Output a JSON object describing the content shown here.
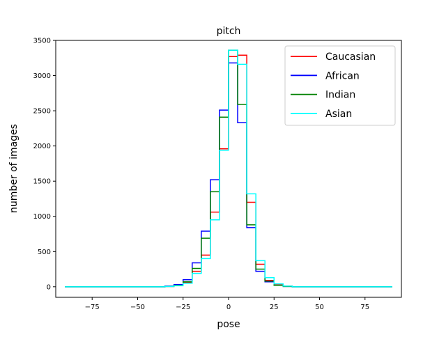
{
  "chart_data": {
    "type": "line",
    "title": "pitch",
    "xlabel": "pose",
    "ylabel": "number of images",
    "xlim": [
      -95,
      95
    ],
    "ylim": [
      -150,
      3500
    ],
    "xticks": [
      -75,
      -50,
      -25,
      0,
      25,
      50,
      75
    ],
    "xtick_labels": [
      "−75",
      "−50",
      "−25",
      "0",
      "25",
      "50",
      "75"
    ],
    "yticks": [
      0,
      500,
      1000,
      1500,
      2000,
      2500,
      3000,
      3500
    ],
    "ytick_labels": [
      "0",
      "500",
      "1000",
      "1500",
      "2000",
      "2500",
      "3000",
      "3500"
    ],
    "grid": false,
    "legend_position": "top-right",
    "step_style": "histogram-step",
    "bin_edges": [
      -90,
      -85,
      -80,
      -75,
      -70,
      -65,
      -60,
      -55,
      -50,
      -45,
      -40,
      -35,
      -30,
      -25,
      -20,
      -15,
      -10,
      -5,
      0,
      5,
      10,
      15,
      20,
      25,
      30,
      35,
      40,
      45,
      50,
      55,
      60,
      65,
      70,
      75,
      80,
      85,
      90
    ],
    "series": [
      {
        "name": "Caucasian",
        "color": "#ff0000",
        "values": [
          0,
          0,
          0,
          0,
          0,
          0,
          0,
          0,
          0,
          0,
          0,
          5,
          20,
          60,
          220,
          450,
          1060,
          1960,
          3270,
          3290,
          1200,
          320,
          90,
          30,
          10,
          0,
          0,
          0,
          0,
          0,
          0,
          0,
          0,
          0,
          0,
          0
        ]
      },
      {
        "name": "African",
        "color": "#0000ff",
        "values": [
          0,
          0,
          0,
          0,
          0,
          0,
          0,
          0,
          0,
          0,
          0,
          10,
          30,
          100,
          340,
          790,
          1520,
          2510,
          3180,
          2330,
          840,
          220,
          70,
          20,
          5,
          0,
          0,
          0,
          0,
          0,
          0,
          0,
          0,
          0,
          0,
          0
        ]
      },
      {
        "name": "Indian",
        "color": "#008000",
        "values": [
          0,
          0,
          0,
          0,
          0,
          0,
          0,
          0,
          0,
          0,
          0,
          5,
          20,
          70,
          260,
          690,
          1350,
          2410,
          3360,
          2590,
          880,
          250,
          80,
          20,
          5,
          0,
          0,
          0,
          0,
          0,
          0,
          0,
          0,
          0,
          0,
          0
        ]
      },
      {
        "name": "Asian",
        "color": "#00ffff",
        "values": [
          0,
          0,
          0,
          0,
          0,
          0,
          0,
          0,
          0,
          0,
          0,
          5,
          15,
          50,
          190,
          400,
          950,
          1940,
          3360,
          3160,
          1320,
          370,
          130,
          40,
          10,
          0,
          0,
          0,
          0,
          0,
          0,
          0,
          0,
          0,
          0,
          0
        ]
      }
    ]
  }
}
